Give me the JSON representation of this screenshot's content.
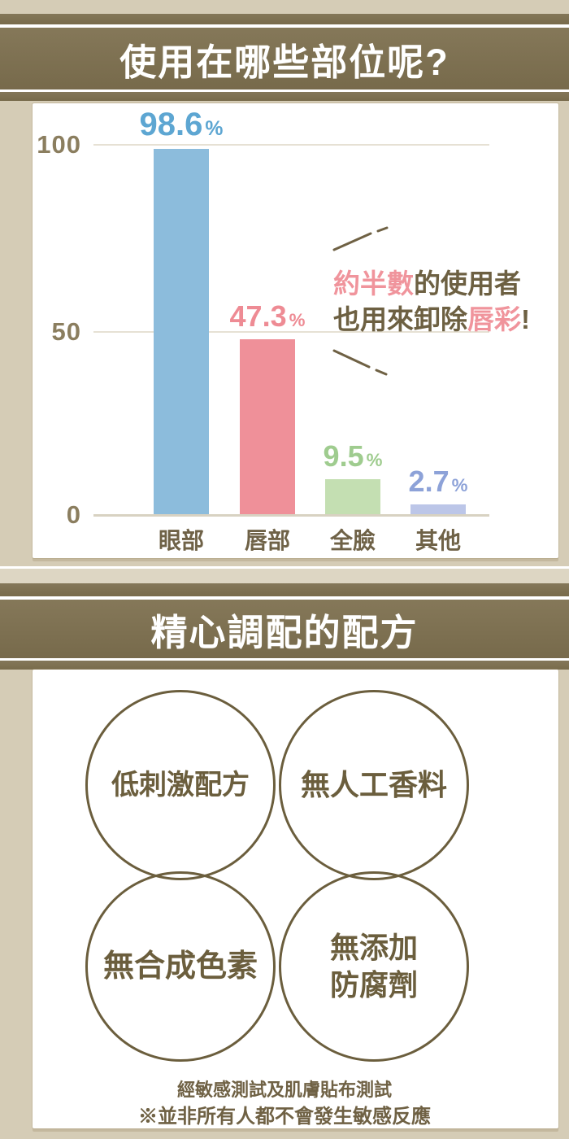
{
  "section1": {
    "title": "使用在哪些部位呢?",
    "annotation": {
      "line1_highlight": "約半數",
      "line1_rest": "的使用者",
      "line2_pre": "也用來卸除",
      "line2_highlight": "唇彩",
      "line2_post": "!"
    }
  },
  "section2": {
    "title": "精心調配的配方",
    "circles": [
      {
        "label": "低刺激配方"
      },
      {
        "label": "無人工香料"
      },
      {
        "label": "無合成色素"
      },
      {
        "label_line1": "無添加",
        "label_line2": "防腐劑"
      }
    ],
    "footnote1": "經敏感測試及肌膚貼布測試",
    "footnote2": "※並非所有人都不會發生敏感反應"
  },
  "chart_data": {
    "type": "bar",
    "categories": [
      "眼部",
      "唇部",
      "全臉",
      "其他"
    ],
    "values": [
      98.6,
      47.3,
      9.5,
      2.7
    ],
    "percent_sign": "%",
    "yticks": [
      0,
      50,
      100
    ],
    "ylim": [
      0,
      110
    ],
    "grid": true,
    "bar_colors": [
      "#8cbcdc",
      "#ef9099",
      "#c4dfb2",
      "#bcc6e8"
    ],
    "label_colors": [
      "#5da6d2",
      "#ee8b94",
      "#9fcc8f",
      "#8da2d8"
    ],
    "axis_color": "#8b7e5f"
  },
  "colors": {
    "page_bg": "#d5ccb6",
    "band_dark": "#7d7051",
    "panel_bg": "#ffffff",
    "text_brown": "#6d6042",
    "highlight_pink": "#f0949c"
  }
}
